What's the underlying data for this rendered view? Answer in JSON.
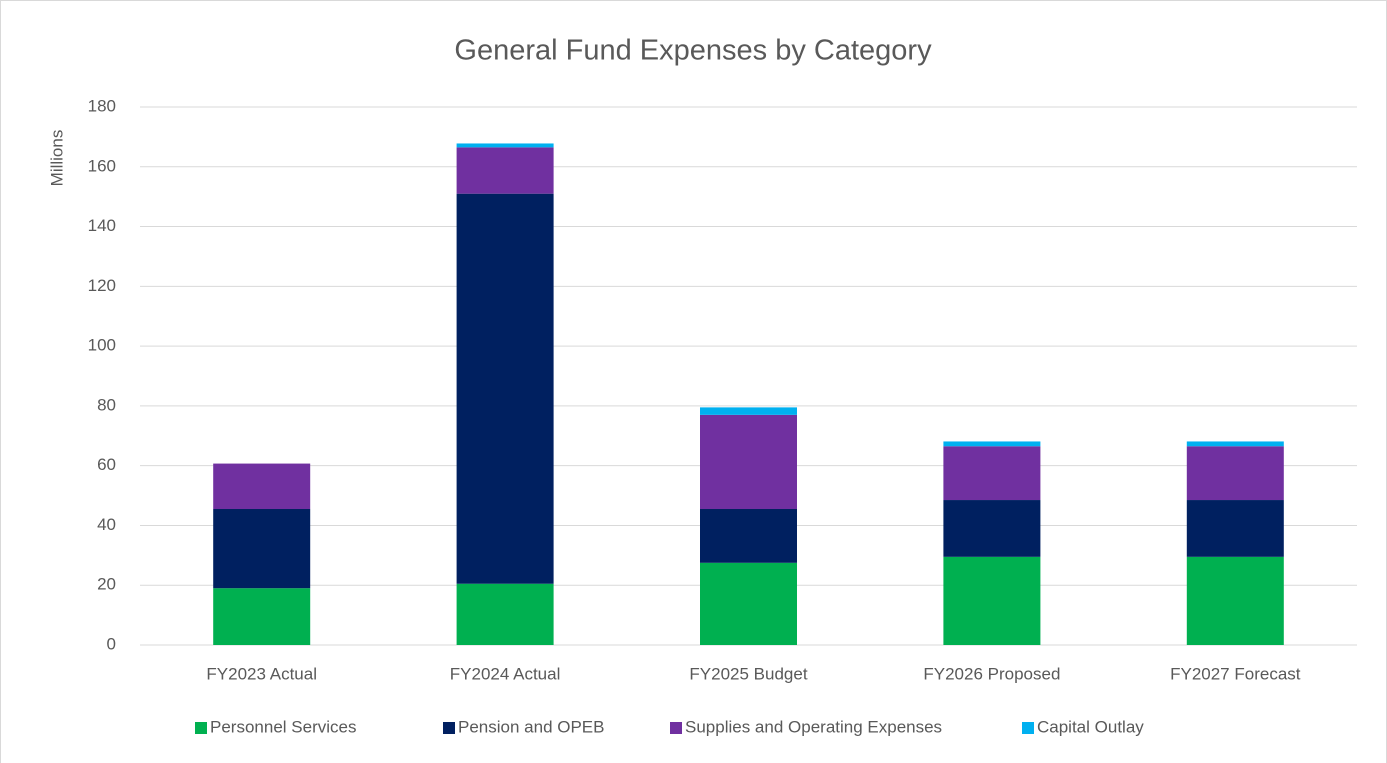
{
  "chart_data": {
    "type": "stacked_bar",
    "title": "General Fund Expenses by Category",
    "y_label": "Millions",
    "categories": [
      "FY2023 Actual",
      "FY2024 Actual",
      "FY2025 Budget",
      "FY2026 Proposed",
      "FY2027 Forecast"
    ],
    "series": [
      {
        "name": "Personnel Services",
        "color": "#00b050",
        "values": [
          19,
          20.5,
          27.5,
          29.5,
          29.5
        ]
      },
      {
        "name": "Pension and OPEB",
        "color": "#002060",
        "values": [
          26.5,
          130.5,
          18,
          19,
          19
        ]
      },
      {
        "name": "Supplies and Operating Expenses",
        "color": "#7030a0",
        "values": [
          15.2,
          15.5,
          31.5,
          18,
          18
        ]
      },
      {
        "name": "Capital Outlay",
        "color": "#00b0f0",
        "values": [
          0,
          1.3,
          2.5,
          1.6,
          1.6
        ]
      }
    ],
    "ylim": [
      0,
      180
    ],
    "yticks": [
      0,
      20,
      40,
      60,
      80,
      100,
      120,
      140,
      160,
      180
    ],
    "grid": true,
    "legend": "bottom"
  }
}
